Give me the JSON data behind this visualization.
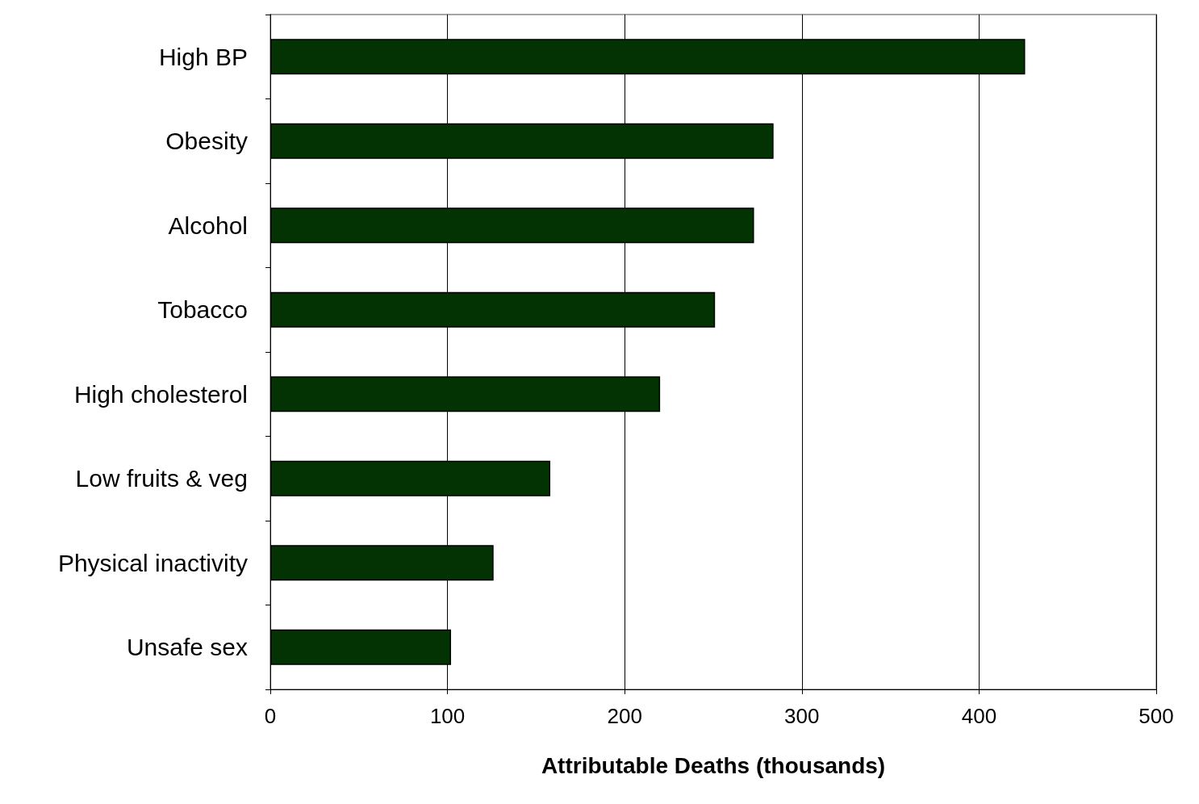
{
  "chart_data": {
    "type": "bar",
    "orientation": "horizontal",
    "xlabel": "Attributable Deaths (thousands)",
    "categories": [
      "High BP",
      "Obesity",
      "Alcohol",
      "Tobacco",
      "High cholesterol",
      "Low fruits & veg",
      "Physical inactivity",
      "Unsafe sex"
    ],
    "values": [
      426,
      284,
      273,
      251,
      220,
      158,
      126,
      102
    ],
    "color": "#033303",
    "xlim": [
      0,
      500
    ],
    "xticks": [
      0,
      100,
      200,
      300,
      400,
      500
    ],
    "grid": "x"
  }
}
